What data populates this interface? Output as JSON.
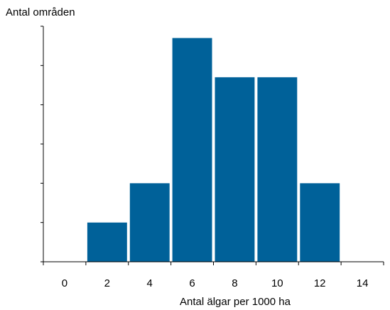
{
  "chart_data": {
    "type": "bar",
    "title": "",
    "xlabel": "Antal älgar per 1000 ha",
    "ylabel": "Antal områden",
    "categories": [
      "0",
      "2",
      "4",
      "6",
      "8",
      "10",
      "12",
      "14"
    ],
    "x_ticks": [
      0,
      2,
      4,
      6,
      8,
      10,
      12,
      14
    ],
    "bins": [
      {
        "x": 2,
        "value": 1
      },
      {
        "x": 4,
        "value": 2
      },
      {
        "x": 6,
        "value": 5.7
      },
      {
        "x": 8,
        "value": 4.7
      },
      {
        "x": 10,
        "value": 4.7
      },
      {
        "x": 12,
        "value": 2
      }
    ],
    "ylim": [
      0,
      6
    ],
    "y_ticks": [
      0,
      1,
      2,
      3,
      4,
      5,
      6
    ],
    "y_tick_labels_shown": false,
    "grid": false,
    "legend": "none"
  },
  "colors": {
    "bar": "#006199",
    "axis": "#000000",
    "background": "#ffffff"
  }
}
